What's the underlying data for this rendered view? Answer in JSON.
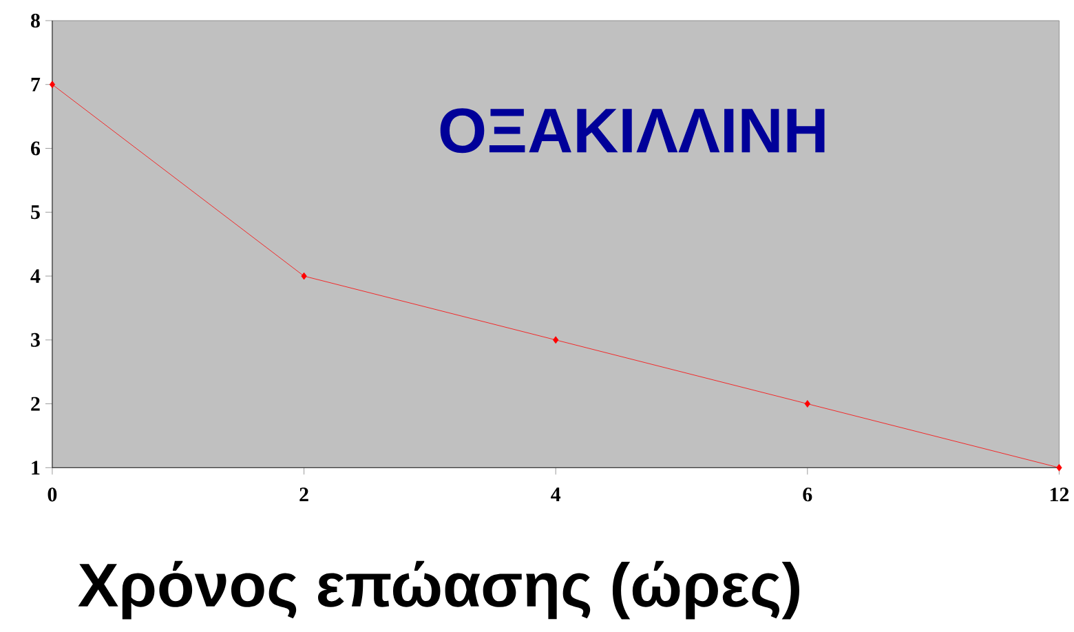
{
  "chart_data": {
    "type": "line",
    "title": "ΟΞΑΚΙΛΛΙΝΗ",
    "xlabel": "Χρόνος επώασης (ώρες)",
    "categories": [
      "0",
      "2",
      "4",
      "6",
      "12"
    ],
    "values": [
      7,
      4,
      3,
      2,
      1
    ],
    "color": "#ff0000",
    "marker": "diamond",
    "line_style": "solid",
    "ylim": [
      1,
      8
    ],
    "yticks": [
      1,
      2,
      3,
      4,
      5,
      6,
      7,
      8
    ],
    "grid": false
  }
}
